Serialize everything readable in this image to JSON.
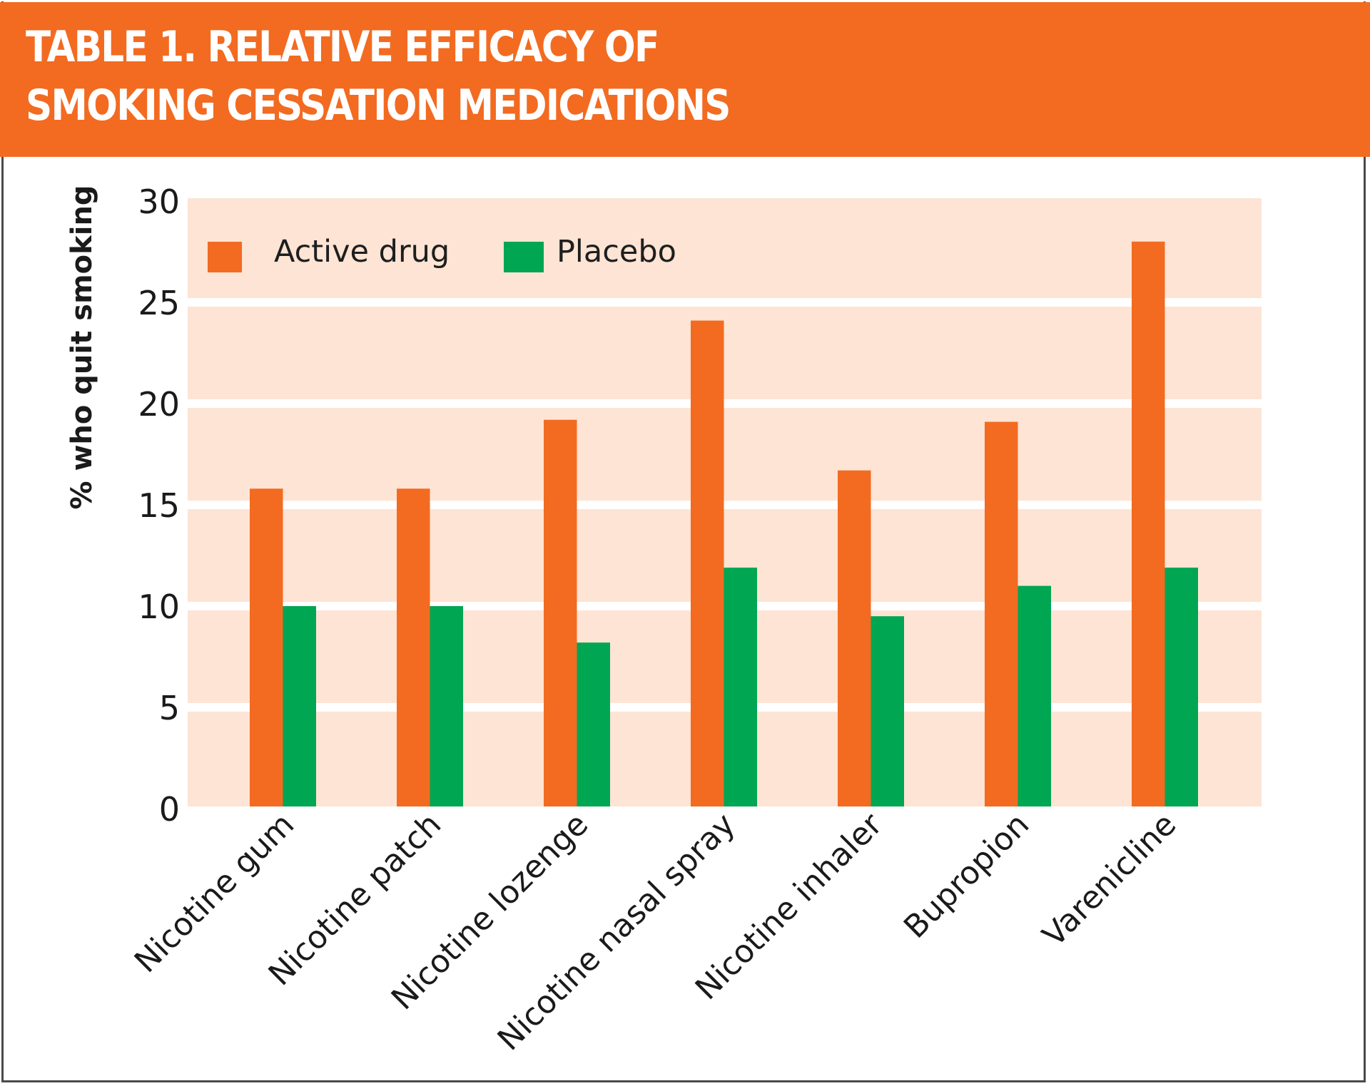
{
  "header": {
    "title_line_1": "TABLE 1. RELATIVE EFFICACY OF",
    "title_line_2": "SMOKING CESSATION MEDICATIONS"
  },
  "colors": {
    "header_bg": "#f26b21",
    "active": "#f26b21",
    "placebo": "#00a651",
    "plot_bg": "#fde4d4",
    "gridline": "#ffffff"
  },
  "chart_data": {
    "type": "bar",
    "title": "TABLE 1. RELATIVE EFFICACY OF SMOKING CESSATION MEDICATIONS",
    "xlabel": "",
    "ylabel": "% who quit smoking",
    "ylim": [
      0,
      30
    ],
    "yticks": [
      0,
      5,
      10,
      15,
      20,
      25,
      30
    ],
    "ytick_labels": [
      "0",
      "5",
      "10",
      "15",
      "20",
      "25",
      "30"
    ],
    "grid": true,
    "legend_position": "top-left",
    "categories": [
      "Nicotine gum",
      "Nicotine patch",
      "Nicotine lozenge",
      "Nicotine nasal spray",
      "Nicotine inhaler",
      "Bupropion",
      "Varenicline"
    ],
    "series": [
      {
        "name": "Active drug",
        "color": "#f26b21",
        "values": [
          15.8,
          15.8,
          19.2,
          24.1,
          16.7,
          19.1,
          28.0
        ]
      },
      {
        "name": "Placebo",
        "color": "#00a651",
        "values": [
          10.0,
          10.0,
          8.2,
          11.9,
          9.5,
          11.0,
          11.9
        ]
      }
    ]
  }
}
